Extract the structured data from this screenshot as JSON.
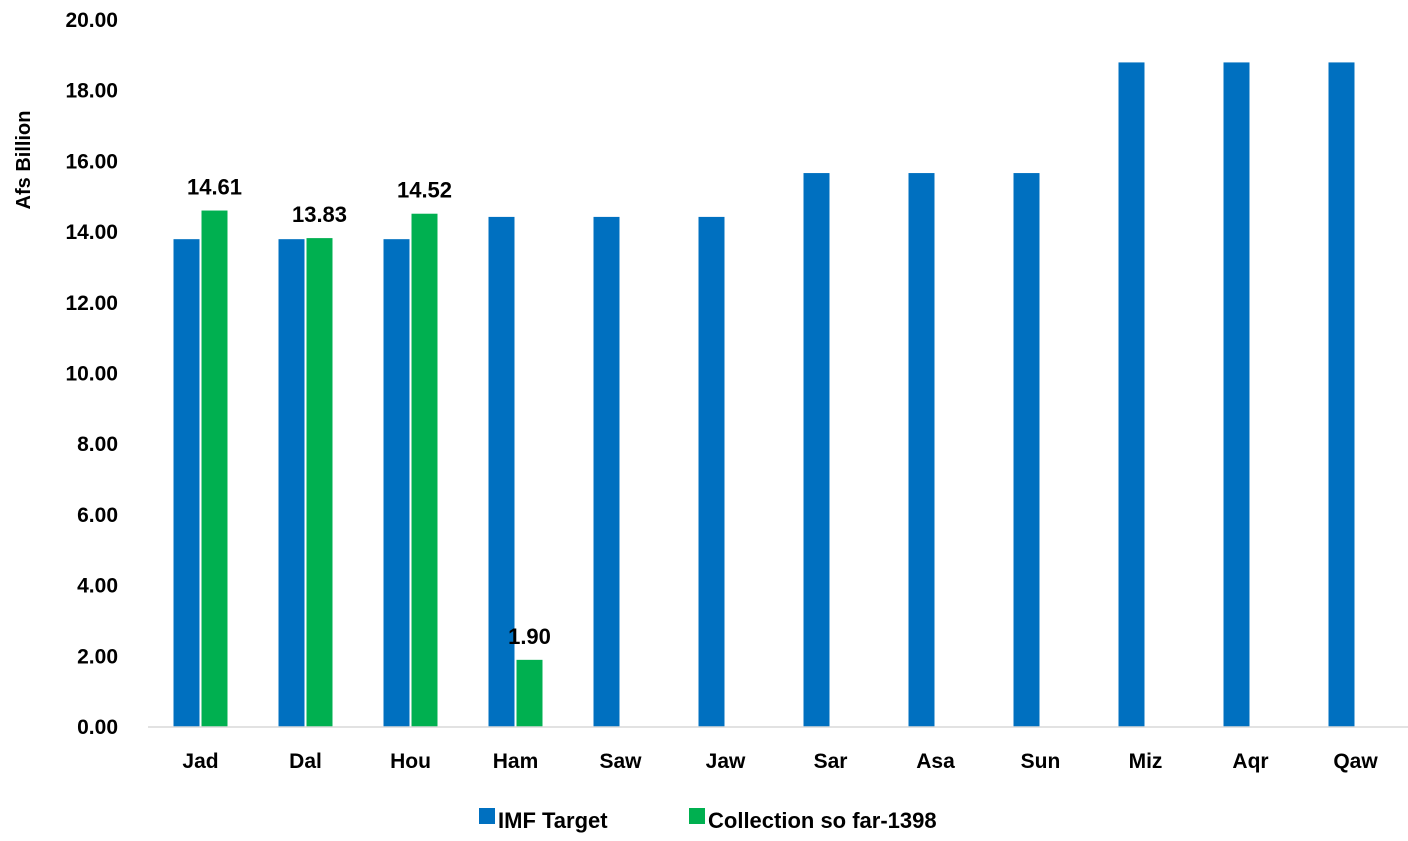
{
  "chart_data": {
    "type": "bar",
    "title": "",
    "xlabel": "",
    "ylabel": "Afs Billion",
    "ylim": [
      0,
      20
    ],
    "ytick_step": 2,
    "ytick_decimals": 2,
    "grid": false,
    "legend_position": "bottom",
    "categories": [
      "Jad",
      "Dal",
      "Hou",
      "Ham",
      "Saw",
      "Jaw",
      "Sar",
      "Asa",
      "Sun",
      "Miz",
      "Aqr",
      "Qaw"
    ],
    "series": [
      {
        "name": "IMF Target",
        "color": "#0070C0",
        "values": [
          13.8,
          13.8,
          13.8,
          14.43,
          14.43,
          14.43,
          15.67,
          15.67,
          15.67,
          18.8,
          18.8,
          18.8
        ],
        "show_labels": false
      },
      {
        "name": "Collection so far-1398",
        "color": "#00B050",
        "values": [
          14.61,
          13.83,
          14.52,
          1.9,
          null,
          null,
          null,
          null,
          null,
          null,
          null,
          null
        ],
        "show_labels": true,
        "labels": [
          "14.61",
          "13.83",
          "14.52",
          "1.90",
          null,
          null,
          null,
          null,
          null,
          null,
          null,
          null
        ]
      }
    ]
  }
}
